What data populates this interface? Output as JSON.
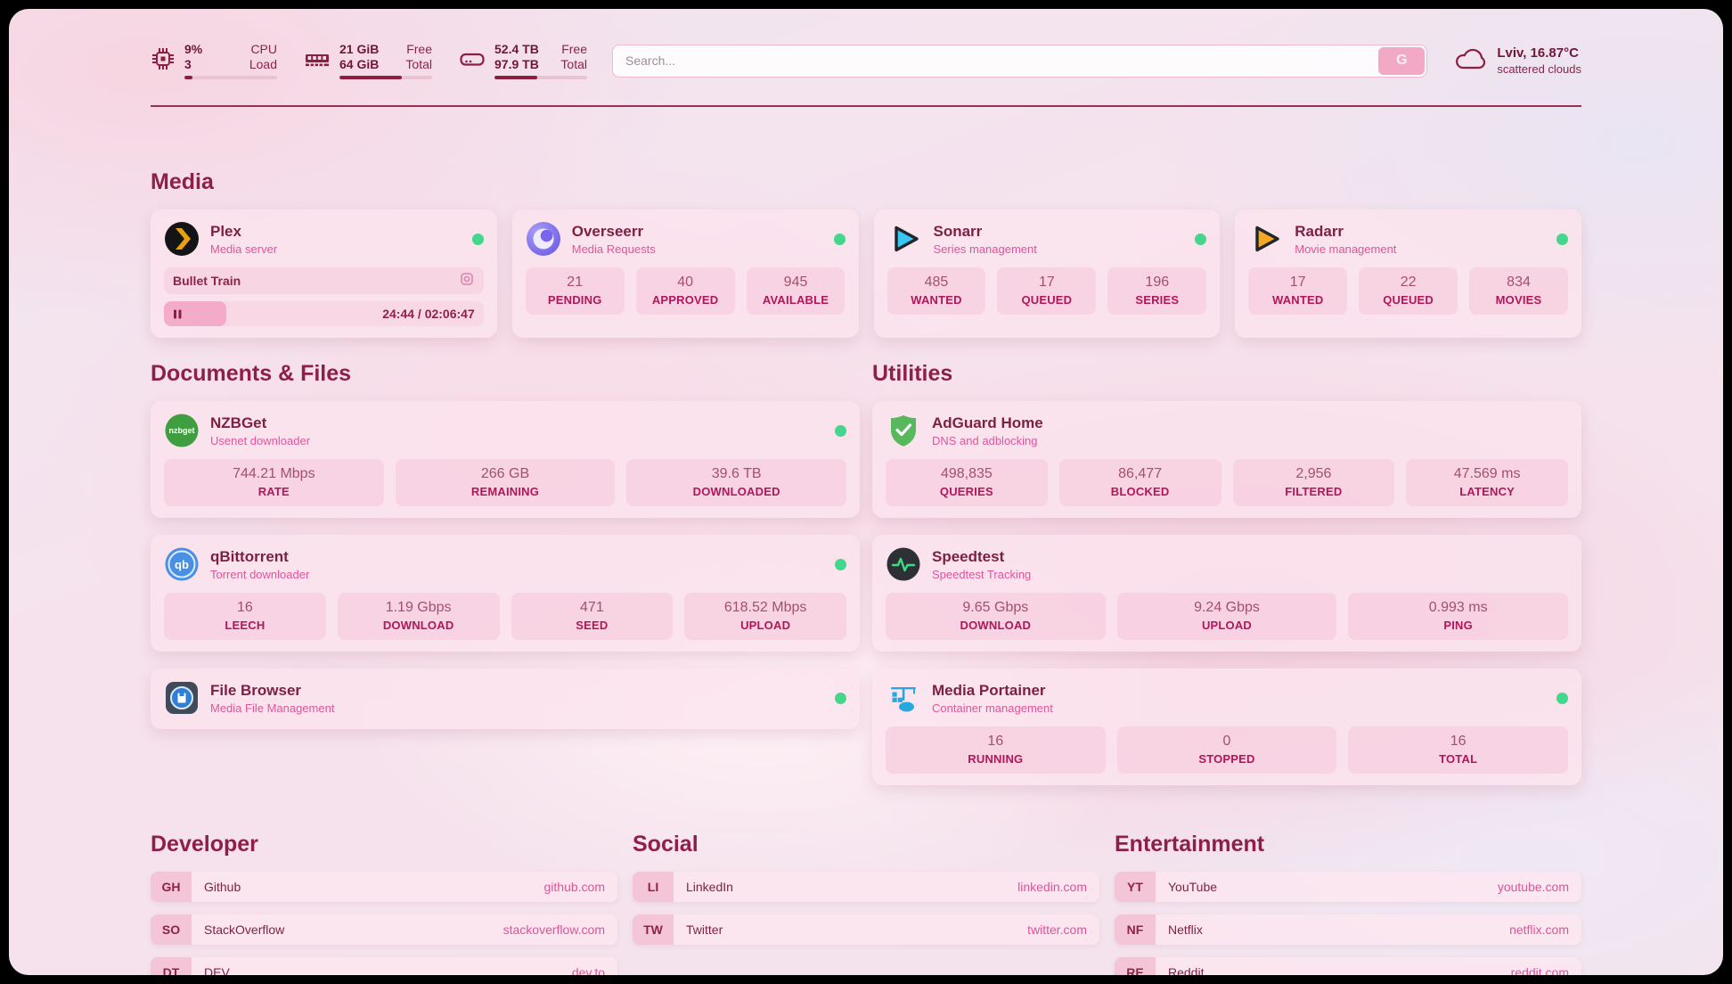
{
  "header": {
    "system_stats": [
      {
        "icon": "cpu-icon",
        "values": [
          "9%",
          "3"
        ],
        "labels": [
          "CPU",
          "Load"
        ],
        "progress_pct": 9
      },
      {
        "icon": "ram-icon",
        "values": [
          "21 GiB",
          "64 GiB"
        ],
        "labels": [
          "Free",
          "Total"
        ],
        "progress_pct": 67
      },
      {
        "icon": "disk-icon",
        "values": [
          "52.4 TB",
          "97.9 TB"
        ],
        "labels": [
          "Free",
          "Total"
        ],
        "progress_pct": 46
      }
    ],
    "search": {
      "placeholder": "Search...",
      "button_label": "G"
    },
    "weather": {
      "icon": "cloud-icon",
      "location_temp": "Lviv, 16.87°C",
      "condition": "scattered clouds"
    }
  },
  "sections": {
    "media": {
      "title": "Media",
      "cards": [
        {
          "icon": "plex-icon",
          "title": "Plex",
          "subtitle": "Media server",
          "online": true,
          "now_playing": {
            "title": "Bullet Train",
            "state": "paused",
            "time": "24:44 / 02:06:47",
            "progress_pct": 19.5
          }
        },
        {
          "icon": "overseerr-icon",
          "title": "Overseerr",
          "subtitle": "Media Requests",
          "online": true,
          "stats": [
            {
              "value": "21",
              "label": "PENDING"
            },
            {
              "value": "40",
              "label": "APPROVED"
            },
            {
              "value": "945",
              "label": "AVAILABLE"
            }
          ]
        },
        {
          "icon": "sonarr-icon",
          "title": "Sonarr",
          "subtitle": "Series management",
          "online": true,
          "stats": [
            {
              "value": "485",
              "label": "WANTED"
            },
            {
              "value": "17",
              "label": "QUEUED"
            },
            {
              "value": "196",
              "label": "SERIES"
            }
          ]
        },
        {
          "icon": "radarr-icon",
          "title": "Radarr",
          "subtitle": "Movie management",
          "online": true,
          "stats": [
            {
              "value": "17",
              "label": "WANTED"
            },
            {
              "value": "22",
              "label": "QUEUED"
            },
            {
              "value": "834",
              "label": "MOVIES"
            }
          ]
        }
      ]
    },
    "documents": {
      "title": "Documents & Files",
      "cards": [
        {
          "icon": "nzbget-icon",
          "title": "NZBGet",
          "subtitle": "Usenet downloader",
          "online": true,
          "stats": [
            {
              "value": "744.21 Mbps",
              "label": "RATE"
            },
            {
              "value": "266 GB",
              "label": "REMAINING"
            },
            {
              "value": "39.6 TB",
              "label": "DOWNLOADED"
            }
          ]
        },
        {
          "icon": "qbittorrent-icon",
          "title": "qBittorrent",
          "subtitle": "Torrent downloader",
          "online": true,
          "stats": [
            {
              "value": "16",
              "label": "LEECH"
            },
            {
              "value": "1.19 Gbps",
              "label": "DOWNLOAD"
            },
            {
              "value": "471",
              "label": "SEED"
            },
            {
              "value": "618.52 Mbps",
              "label": "UPLOAD"
            }
          ]
        },
        {
          "icon": "filebrowser-icon",
          "title": "File Browser",
          "subtitle": "Media File Management",
          "online": true
        }
      ]
    },
    "utilities": {
      "title": "Utilities",
      "cards": [
        {
          "icon": "adguard-icon",
          "title": "AdGuard Home",
          "subtitle": "DNS and adblocking",
          "stats": [
            {
              "value": "498,835",
              "label": "QUERIES"
            },
            {
              "value": "86,477",
              "label": "BLOCKED"
            },
            {
              "value": "2,956",
              "label": "FILTERED"
            },
            {
              "value": "47.569 ms",
              "label": "LATENCY"
            }
          ]
        },
        {
          "icon": "speedtest-icon",
          "title": "Speedtest",
          "subtitle": "Speedtest Tracking",
          "stats": [
            {
              "value": "9.65 Gbps",
              "label": "DOWNLOAD"
            },
            {
              "value": "9.24 Gbps",
              "label": "UPLOAD"
            },
            {
              "value": "0.993 ms",
              "label": "PING"
            }
          ]
        },
        {
          "icon": "portainer-icon",
          "title": "Media Portainer",
          "subtitle": "Container management",
          "online": true,
          "stats": [
            {
              "value": "16",
              "label": "RUNNING"
            },
            {
              "value": "0",
              "label": "STOPPED"
            },
            {
              "value": "16",
              "label": "TOTAL"
            }
          ]
        }
      ]
    },
    "developer": {
      "title": "Developer",
      "links": [
        {
          "abbr": "GH",
          "name": "Github",
          "url": "github.com"
        },
        {
          "abbr": "SO",
          "name": "StackOverflow",
          "url": "stackoverflow.com"
        },
        {
          "abbr": "DT",
          "name": "DEV",
          "url": "dev.to"
        }
      ]
    },
    "social": {
      "title": "Social",
      "links": [
        {
          "abbr": "LI",
          "name": "LinkedIn",
          "url": "linkedin.com"
        },
        {
          "abbr": "TW",
          "name": "Twitter",
          "url": "twitter.com"
        }
      ]
    },
    "entertainment": {
      "title": "Entertainment",
      "links": [
        {
          "abbr": "YT",
          "name": "YouTube",
          "url": "youtube.com"
        },
        {
          "abbr": "NF",
          "name": "Netflix",
          "url": "netflix.com"
        },
        {
          "abbr": "RE",
          "name": "Reddit",
          "url": "reddit.com"
        }
      ]
    }
  },
  "colors": {
    "accent": "#8e1e40",
    "heading": "#8e1e4a",
    "subtitle": "#e0549c",
    "stat_value": "#a3506b",
    "stat_label": "#b2165a",
    "status_online": "#45d68d",
    "link_url": "#e0519c"
  }
}
